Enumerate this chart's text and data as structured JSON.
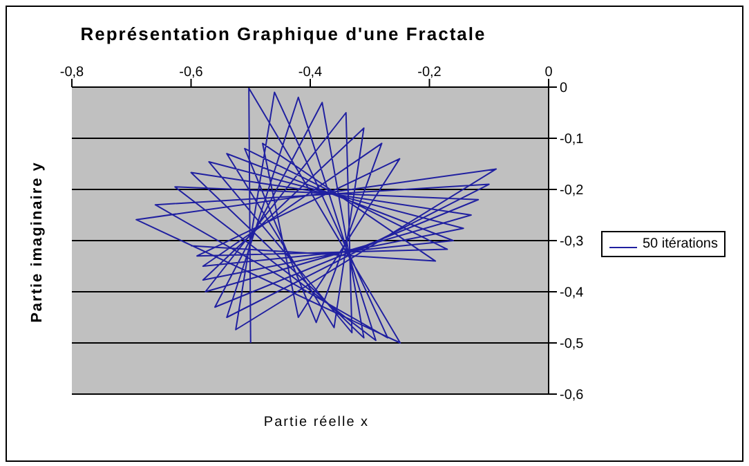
{
  "chart_data": {
    "type": "line",
    "title": "Représentation Graphique d'une Fractale",
    "xlabel": "Partie réelle x",
    "ylabel": "Partie imaginaire y",
    "series": [
      {
        "name": "50 itérations",
        "color": "#2020a0",
        "x": [
          -0.5,
          -0.503,
          -0.249,
          -0.692,
          -0.088,
          -0.525,
          -0.46,
          -0.27,
          -0.66,
          -0.1,
          -0.54,
          -0.42,
          -0.29,
          -0.627,
          -0.118,
          -0.56,
          -0.38,
          -0.31,
          -0.6,
          -0.13,
          -0.576,
          -0.34,
          -0.33,
          -0.57,
          -0.143,
          -0.58,
          -0.31,
          -0.36,
          -0.54,
          -0.16,
          -0.58,
          -0.28,
          -0.39,
          -0.51,
          -0.17,
          -0.59,
          -0.25,
          -0.42,
          -0.48,
          -0.19,
          -0.6
        ],
        "values": [
          -0.5,
          -0.002,
          -0.5,
          -0.259,
          -0.16,
          -0.474,
          -0.01,
          -0.49,
          -0.23,
          -0.19,
          -0.45,
          -0.02,
          -0.495,
          -0.195,
          -0.22,
          -0.43,
          -0.03,
          -0.49,
          -0.167,
          -0.25,
          -0.4,
          -0.05,
          -0.48,
          -0.146,
          -0.276,
          -0.377,
          -0.08,
          -0.47,
          -0.13,
          -0.3,
          -0.35,
          -0.11,
          -0.46,
          -0.12,
          -0.317,
          -0.33,
          -0.14,
          -0.45,
          -0.11,
          -0.34,
          -0.31
        ]
      }
    ],
    "xlim": [
      -0.8,
      0
    ],
    "xticks": [
      {
        "value": -0.8,
        "label": "-0,8"
      },
      {
        "value": -0.6,
        "label": "-0,6"
      },
      {
        "value": -0.4,
        "label": "-0,4"
      },
      {
        "value": -0.2,
        "label": "-0,2"
      },
      0
    ],
    "ylim": [
      -0.6,
      0
    ],
    "yticks": [
      {
        "value": -0.6,
        "label": "-0,6"
      },
      {
        "value": -0.5,
        "label": "-0,5"
      },
      {
        "value": -0.4,
        "label": "-0,4"
      },
      {
        "value": -0.3,
        "label": "-0,3"
      },
      {
        "value": -0.2,
        "label": "-0,2"
      },
      {
        "value": -0.1,
        "label": "-0,1"
      },
      0
    ],
    "grid": "y",
    "legend": "right",
    "marker": "none",
    "line_style": "solid"
  }
}
